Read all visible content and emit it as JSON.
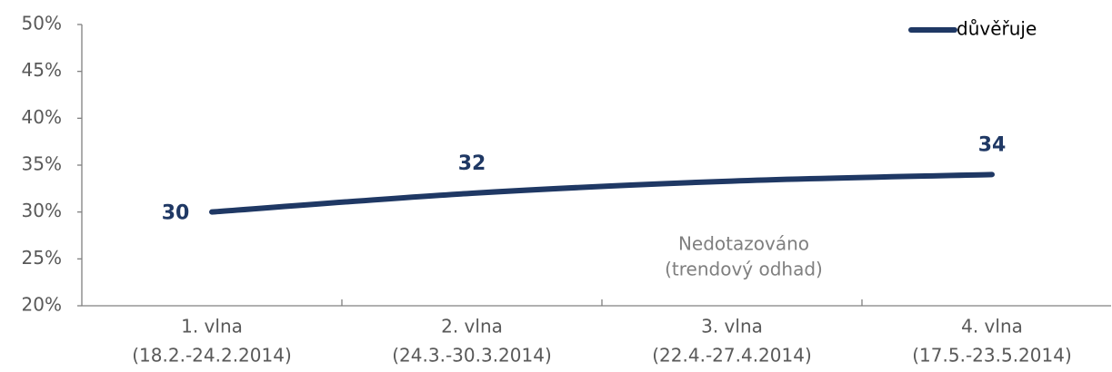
{
  "chart_data": {
    "type": "line",
    "categories": [
      [
        "1. vlna",
        "(18.2.-24.2.2014)"
      ],
      [
        "2. vlna",
        "(24.3.-30.3.2014)"
      ],
      [
        "3. vlna",
        "(22.4.-27.4.2014)"
      ],
      [
        "4. vlna",
        "(17.5.-23.5.2014)"
      ]
    ],
    "series": [
      {
        "name": "důvěřuje",
        "color": "#1f3864",
        "values": [
          30,
          32,
          33.3,
          34
        ],
        "value_labels": [
          "30",
          "32",
          null,
          "34"
        ]
      }
    ],
    "ylim": [
      20,
      50
    ],
    "yticks": [
      {
        "value": 20,
        "label": "20%"
      },
      {
        "value": 25,
        "label": "25%"
      },
      {
        "value": 30,
        "label": "30%"
      },
      {
        "value": 35,
        "label": "35%"
      },
      {
        "value": 40,
        "label": "40%"
      },
      {
        "value": 45,
        "label": "45%"
      },
      {
        "value": 50,
        "label": "50%"
      }
    ],
    "annotation": [
      "Nedotazováno",
      "(trendový odhad)"
    ],
    "legend": "top-right"
  }
}
